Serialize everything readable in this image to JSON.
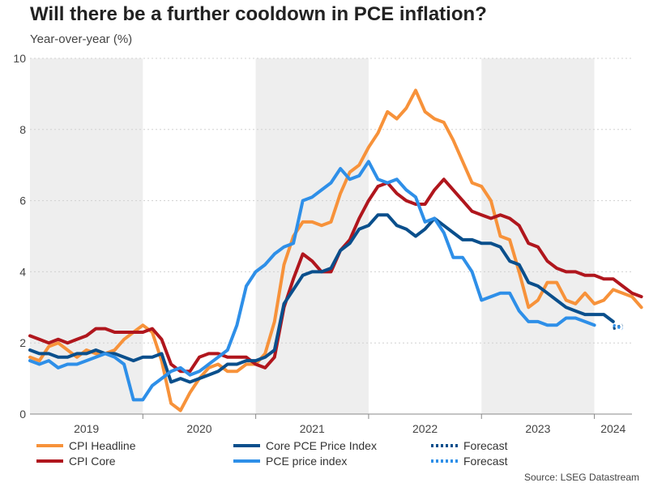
{
  "title": "Will there be a further cooldown in PCE inflation?",
  "subtitle": "Year-over-year (%)",
  "source": "Source: LSEG Datastream",
  "chart_data": {
    "type": "line",
    "ylim": [
      0,
      10
    ],
    "yticks": [
      "0",
      "2",
      "4",
      "6",
      "8",
      "10"
    ],
    "xlim": [
      "2019-01",
      "2024-05"
    ],
    "xlabels": [
      "2019",
      "2020",
      "2021",
      "2022",
      "2023",
      "2024"
    ],
    "grid": true,
    "shaded_years": [
      "2019",
      "2021",
      "2023"
    ],
    "legend_placement": "bottom",
    "series": [
      {
        "name": "CPI Headline",
        "color": "#f7923a",
        "start": "2019-01",
        "values": [
          1.6,
          1.5,
          1.9,
          2.0,
          1.8,
          1.6,
          1.8,
          1.7,
          1.7,
          1.8,
          2.1,
          2.3,
          2.5,
          2.3,
          1.5,
          0.3,
          0.1,
          0.6,
          1.0,
          1.3,
          1.4,
          1.2,
          1.2,
          1.4,
          1.4,
          1.7,
          2.6,
          4.2,
          5.0,
          5.4,
          5.4,
          5.3,
          5.4,
          6.2,
          6.8,
          7.0,
          7.5,
          7.9,
          8.5,
          8.3,
          8.6,
          9.1,
          8.5,
          8.3,
          8.2,
          7.7,
          7.1,
          6.5,
          6.4,
          6.0,
          5.0,
          4.9,
          4.0,
          3.0,
          3.2,
          3.7,
          3.7,
          3.2,
          3.1,
          3.4,
          3.1,
          3.2,
          3.5,
          3.4,
          3.3,
          3.0
        ]
      },
      {
        "name": "CPI Core",
        "color": "#b0161d",
        "start": "2019-01",
        "values": [
          2.2,
          2.1,
          2.0,
          2.1,
          2.0,
          2.1,
          2.2,
          2.4,
          2.4,
          2.3,
          2.3,
          2.3,
          2.3,
          2.4,
          2.1,
          1.4,
          1.2,
          1.2,
          1.6,
          1.7,
          1.7,
          1.6,
          1.6,
          1.6,
          1.4,
          1.3,
          1.6,
          3.0,
          3.8,
          4.5,
          4.3,
          4.0,
          4.0,
          4.6,
          4.9,
          5.5,
          6.0,
          6.4,
          6.5,
          6.2,
          6.0,
          5.9,
          5.9,
          6.3,
          6.6,
          6.3,
          6.0,
          5.7,
          5.6,
          5.5,
          5.6,
          5.5,
          5.3,
          4.8,
          4.7,
          4.3,
          4.1,
          4.0,
          4.0,
          3.9,
          3.9,
          3.8,
          3.8,
          3.6,
          3.4,
          3.3
        ]
      },
      {
        "name": "Core PCE Price Index",
        "color": "#0a4f8c",
        "start": "2019-01",
        "values": [
          1.8,
          1.7,
          1.7,
          1.6,
          1.6,
          1.7,
          1.7,
          1.8,
          1.7,
          1.7,
          1.6,
          1.5,
          1.6,
          1.6,
          1.7,
          0.9,
          1.0,
          0.9,
          1.0,
          1.1,
          1.2,
          1.4,
          1.4,
          1.5,
          1.5,
          1.6,
          1.8,
          3.1,
          3.5,
          3.9,
          4.0,
          4.0,
          4.1,
          4.6,
          4.8,
          5.2,
          5.3,
          5.6,
          5.6,
          5.3,
          5.2,
          5.0,
          5.2,
          5.5,
          5.3,
          5.1,
          4.9,
          4.9,
          4.8,
          4.8,
          4.7,
          4.3,
          4.2,
          3.7,
          3.6,
          3.4,
          3.2,
          3.0,
          2.9,
          2.8,
          2.8,
          2.8,
          2.6
        ]
      },
      {
        "name": "PCE price index",
        "color": "#2e8fe8",
        "start": "2019-01",
        "values": [
          1.5,
          1.4,
          1.5,
          1.3,
          1.4,
          1.4,
          1.5,
          1.6,
          1.7,
          1.6,
          1.4,
          0.4,
          0.4,
          0.8,
          1.0,
          1.2,
          1.3,
          1.1,
          1.2,
          1.4,
          1.6,
          1.8,
          2.5,
          3.6,
          4.0,
          4.2,
          4.5,
          4.7,
          4.8,
          6.0,
          6.1,
          6.3,
          6.5,
          6.9,
          6.6,
          6.7,
          7.1,
          6.6,
          6.5,
          6.6,
          6.3,
          6.1,
          5.4,
          5.5,
          5.1,
          4.4,
          4.4,
          4.0,
          3.2,
          3.3,
          3.4,
          3.4,
          2.9,
          2.6,
          2.6,
          2.5,
          2.5,
          2.7,
          2.7,
          2.6,
          2.5
        ]
      },
      {
        "name": "Forecast",
        "color": "#0a4f8c",
        "dashed": true,
        "start": "2024-03",
        "values": [
          2.4,
          2.5
        ]
      },
      {
        "name": "Forecast",
        "color": "#2e8fe8",
        "dashed": true,
        "start": "2024-03",
        "values": [
          2.5,
          2.4
        ]
      }
    ]
  }
}
